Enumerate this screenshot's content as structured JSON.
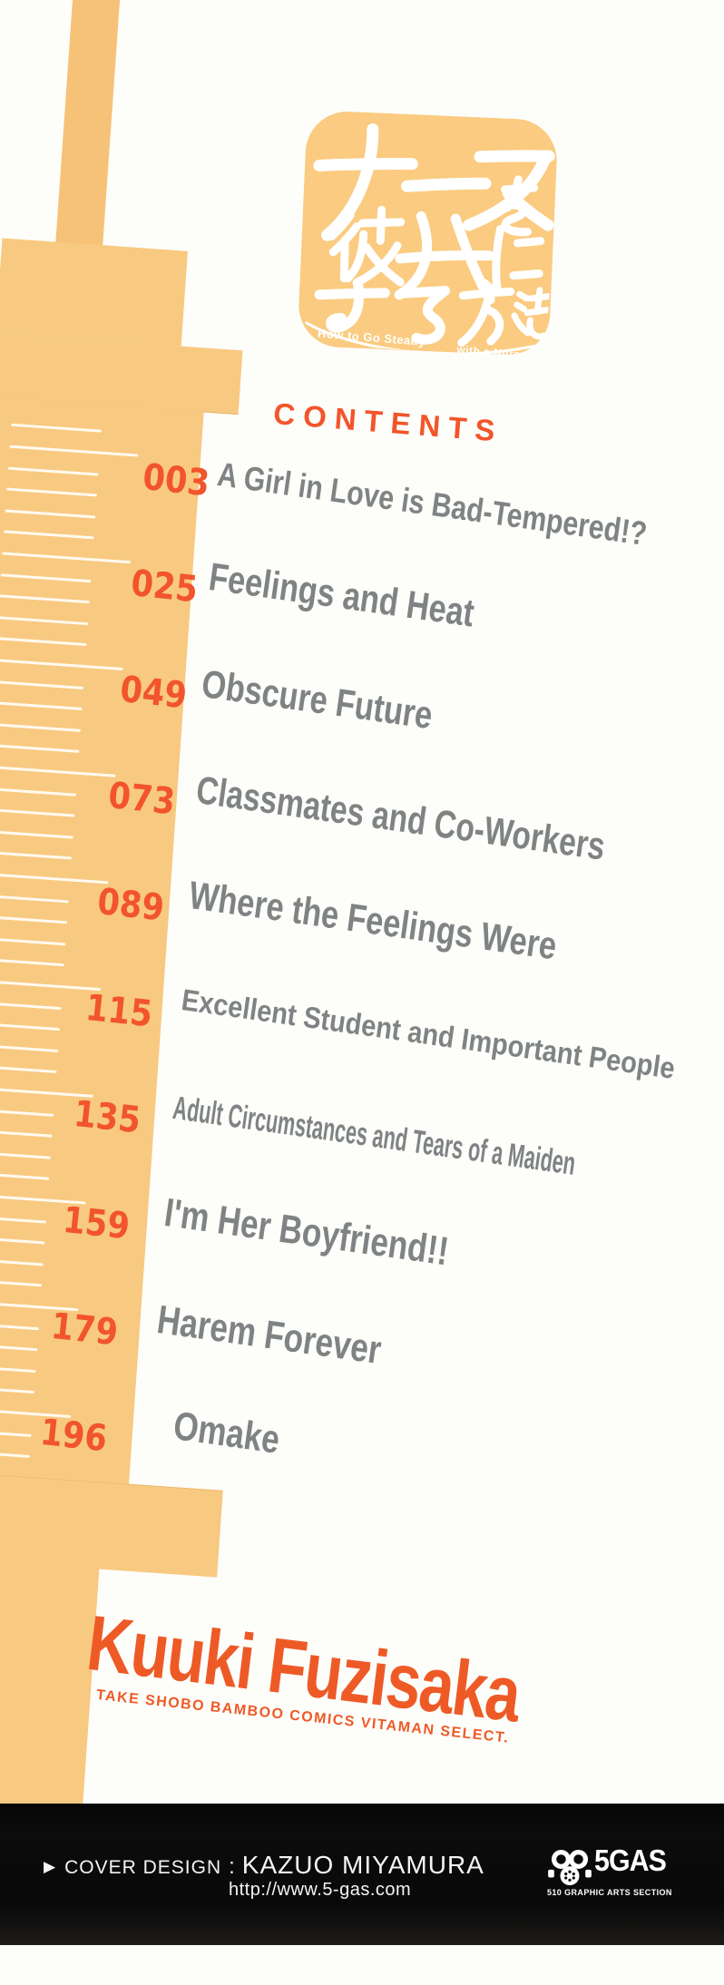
{
  "logo": {
    "japanese_title": "ナースを彼女にする方法",
    "caption_left": "How to Go Steady",
    "caption_right": "with a Nurse"
  },
  "contents": {
    "heading": "CONTENTS",
    "entries": [
      {
        "page": "003",
        "title": "A Girl in Love is Bad-Tempered!?"
      },
      {
        "page": "025",
        "title": "Feelings and Heat"
      },
      {
        "page": "049",
        "title": "Obscure Future"
      },
      {
        "page": "073",
        "title": "Classmates and Co-Workers"
      },
      {
        "page": "089",
        "title": "Where the Feelings Were"
      },
      {
        "page": "115",
        "title": "Excellent Student and Important People"
      },
      {
        "page": "135",
        "title": "Adult Circumstances and Tears of a Maiden"
      },
      {
        "page": "159",
        "title": "I'm Her Boyfriend!!"
      },
      {
        "page": "179",
        "title": "Harem Forever"
      },
      {
        "page": "196",
        "title": "Omake"
      }
    ]
  },
  "author": {
    "name": "Kuuki Fuzisaka",
    "imprint": "TAKE SHOBO BAMBOO COMICS VITAMAN SELECT."
  },
  "footer": {
    "arrow": "▶",
    "cover_design_label": "COVER DESIGN",
    "separator": ":",
    "cover_designer": "KAZUO MIYAMURA",
    "url": "http://www.5-gas.com",
    "studio_name": "5GAS",
    "studio_subtitle": "510 GRAPHIC ARTS SECTION"
  },
  "colors": {
    "syringe_orange": "#f8c981",
    "accent_orange_red": "#f2542b",
    "author_orange": "#ee5a26",
    "title_gray": "#7f8384",
    "logo_bg": "#facb80",
    "footer_bg": "#0a0a0a"
  }
}
